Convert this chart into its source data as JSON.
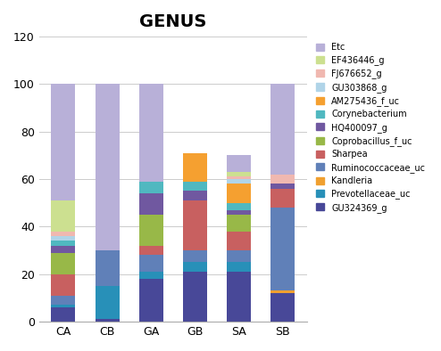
{
  "title": "GENUS",
  "categories": [
    "CA",
    "CB",
    "GA",
    "GB",
    "SA",
    "SB"
  ],
  "ylim": [
    0,
    120
  ],
  "yticks": [
    0,
    20,
    40,
    60,
    80,
    100,
    120
  ],
  "legend_labels": [
    "Etc",
    "EF436446_g",
    "FJ676652_g",
    "GU303868_g",
    "AM275436_f_uc",
    "Corynebacterium",
    "HQ400097_g",
    "Coprobacillus_f_uc",
    "Sharpea",
    "Ruminococcaceae_uc",
    "Kandleria",
    "Prevotellaceae_uc",
    "GU324369_g"
  ],
  "colors": [
    "#b8b0d8",
    "#cce090",
    "#f0b8b0",
    "#b0d4e8",
    "#f5a030",
    "#50b8c0",
    "#7058a0",
    "#98b848",
    "#c86060",
    "#6080b8",
    "#f0a030",
    "#2890b8",
    "#484898"
  ],
  "data": {
    "GU324369_g": [
      6,
      1,
      18,
      21,
      21,
      12
    ],
    "Prevotellaceae_uc": [
      1,
      14,
      3,
      4,
      4,
      0
    ],
    "Kandleria": [
      0,
      0,
      0,
      0,
      0,
      1
    ],
    "Ruminococcaceae_uc": [
      4,
      15,
      7,
      5,
      5,
      35
    ],
    "Sharpea": [
      9,
      0,
      4,
      21,
      8,
      8
    ],
    "Coprobacillus_f_uc": [
      9,
      0,
      13,
      0,
      7,
      0
    ],
    "HQ400097_g": [
      3,
      0,
      9,
      4,
      2,
      2
    ],
    "Corynebacterium": [
      2,
      0,
      5,
      4,
      3,
      0
    ],
    "AM275436_f_uc": [
      0,
      0,
      0,
      12,
      8,
      0
    ],
    "GU303868_g": [
      2,
      0,
      0,
      0,
      2,
      0
    ],
    "FJ676652_g": [
      2,
      0,
      0,
      0,
      1,
      4
    ],
    "EF436446_g": [
      13,
      0,
      0,
      0,
      2,
      0
    ],
    "Etc": [
      49,
      70,
      41,
      0,
      7,
      38
    ]
  }
}
